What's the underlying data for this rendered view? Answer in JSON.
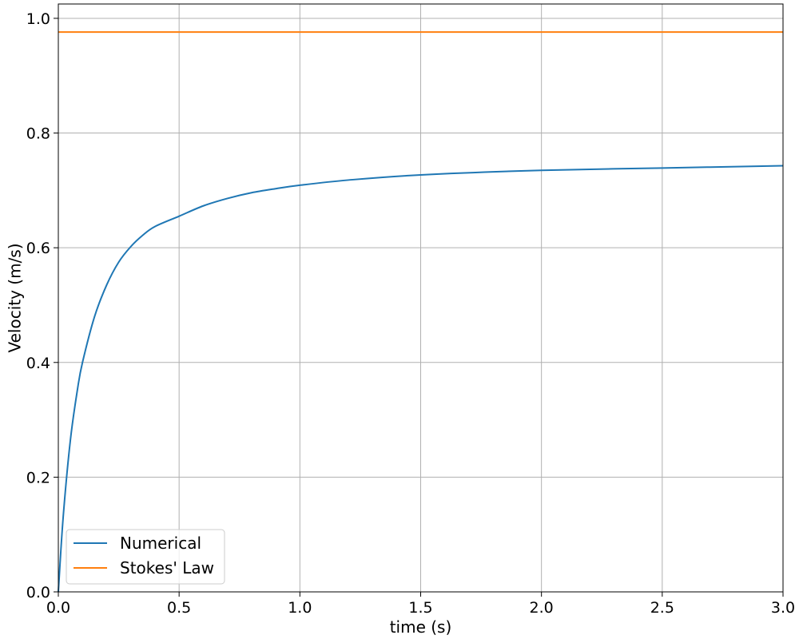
{
  "chart_data": {
    "type": "line",
    "xlabel": "time (s)",
    "ylabel": "Velocity (m/s)",
    "xlim": [
      0,
      3
    ],
    "ylim": [
      0,
      1.025
    ],
    "xticks": [
      0.0,
      0.5,
      1.0,
      1.5,
      2.0,
      2.5,
      3.0
    ],
    "xtick_labels": [
      "0.0",
      "0.5",
      "1.0",
      "1.5",
      "2.0",
      "2.5",
      "3.0"
    ],
    "yticks": [
      0.0,
      0.2,
      0.4,
      0.6,
      0.8,
      1.0
    ],
    "ytick_labels": [
      "0.0",
      "0.2",
      "0.4",
      "0.6",
      "0.8",
      "1.0"
    ],
    "grid": true,
    "legend_position": "lower-left",
    "series": [
      {
        "name": "Numerical",
        "color": "#1f77b4",
        "x": [
          0,
          0.02,
          0.05,
          0.08,
          0.1,
          0.15,
          0.2,
          0.25,
          0.3,
          0.35,
          0.4,
          0.5,
          0.6,
          0.7,
          0.8,
          0.9,
          1.0,
          1.2,
          1.5,
          2.0,
          2.5,
          3.0
        ],
        "y": [
          0,
          0.13,
          0.265,
          0.355,
          0.4,
          0.48,
          0.535,
          0.575,
          0.602,
          0.622,
          0.637,
          0.655,
          0.673,
          0.686,
          0.696,
          0.703,
          0.709,
          0.718,
          0.727,
          0.735,
          0.739,
          0.743
        ]
      },
      {
        "name": "Stokes' Law",
        "color": "#ff7f0e",
        "x": [
          0,
          3.0
        ],
        "y": [
          0.976,
          0.976
        ]
      }
    ]
  }
}
